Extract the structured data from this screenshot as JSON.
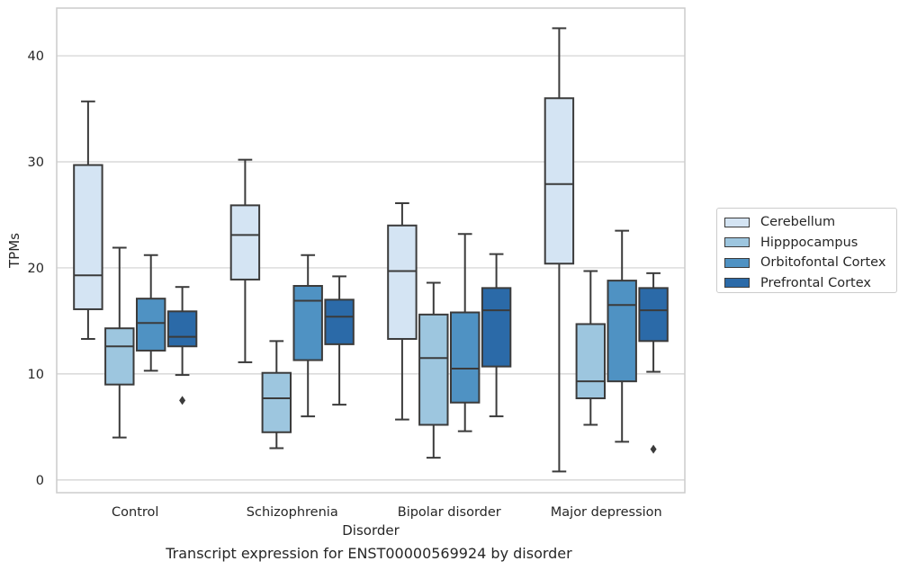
{
  "caption": "Transcript expression for ENST00000569924 by disorder",
  "legend_items": [
    {
      "label": "Cerebellum",
      "color": "#d4e4f3"
    },
    {
      "label": "Hipppocampus",
      "color": "#9dc6df"
    },
    {
      "label": "Orbitofontal Cortex",
      "color": "#4f92c3"
    },
    {
      "label": "Prefrontal Cortex",
      "color": "#2b6aa8"
    }
  ],
  "chart_data": {
    "type": "box",
    "title": "",
    "xlabel": "Disorder",
    "ylabel": "TPMs",
    "ylim": [
      -1.2,
      44.5
    ],
    "yticks": [
      0,
      10,
      20,
      30,
      40
    ],
    "grid": "horizontal",
    "legend_position": "right",
    "categories": [
      "Control",
      "Schizophrenia",
      "Bipolar disorder",
      "Major depression"
    ],
    "series": [
      {
        "name": "Cerebellum",
        "color": "#d4e4f3",
        "boxes": [
          {
            "whisker_low": 13.3,
            "q1": 16.1,
            "median": 19.3,
            "q3": 29.7,
            "whisker_high": 35.7,
            "outliers": []
          },
          {
            "whisker_low": 11.1,
            "q1": 18.9,
            "median": 23.1,
            "q3": 25.9,
            "whisker_high": 30.2,
            "outliers": []
          },
          {
            "whisker_low": 5.7,
            "q1": 13.3,
            "median": 19.7,
            "q3": 24.0,
            "whisker_high": 26.1,
            "outliers": []
          },
          {
            "whisker_low": 0.8,
            "q1": 20.4,
            "median": 27.9,
            "q3": 36.0,
            "whisker_high": 42.6,
            "outliers": []
          }
        ]
      },
      {
        "name": "Hipppocampus",
        "color": "#9dc6df",
        "boxes": [
          {
            "whisker_low": 4.0,
            "q1": 9.0,
            "median": 12.6,
            "q3": 14.3,
            "whisker_high": 21.9,
            "outliers": []
          },
          {
            "whisker_low": 3.0,
            "q1": 4.5,
            "median": 7.7,
            "q3": 10.1,
            "whisker_high": 13.1,
            "outliers": []
          },
          {
            "whisker_low": 2.1,
            "q1": 5.2,
            "median": 11.5,
            "q3": 15.6,
            "whisker_high": 18.6,
            "outliers": []
          },
          {
            "whisker_low": 5.2,
            "q1": 7.7,
            "median": 9.3,
            "q3": 14.7,
            "whisker_high": 19.7,
            "outliers": []
          }
        ]
      },
      {
        "name": "Orbitofontal Cortex",
        "color": "#4f92c3",
        "boxes": [
          {
            "whisker_low": 10.3,
            "q1": 12.2,
            "median": 14.8,
            "q3": 17.1,
            "whisker_high": 21.2,
            "outliers": []
          },
          {
            "whisker_low": 6.0,
            "q1": 11.3,
            "median": 16.9,
            "q3": 18.3,
            "whisker_high": 21.2,
            "outliers": []
          },
          {
            "whisker_low": 4.6,
            "q1": 7.3,
            "median": 10.5,
            "q3": 15.8,
            "whisker_high": 23.2,
            "outliers": []
          },
          {
            "whisker_low": 3.6,
            "q1": 9.3,
            "median": 16.5,
            "q3": 18.8,
            "whisker_high": 23.5,
            "outliers": []
          }
        ]
      },
      {
        "name": "Prefrontal Cortex",
        "color": "#2b6aa8",
        "boxes": [
          {
            "whisker_low": 9.9,
            "q1": 12.6,
            "median": 13.5,
            "q3": 15.9,
            "whisker_high": 18.2,
            "outliers": [
              7.5
            ]
          },
          {
            "whisker_low": 7.1,
            "q1": 12.8,
            "median": 15.4,
            "q3": 17.0,
            "whisker_high": 19.2,
            "outliers": []
          },
          {
            "whisker_low": 6.0,
            "q1": 10.7,
            "median": 16.0,
            "q3": 18.1,
            "whisker_high": 21.3,
            "outliers": []
          },
          {
            "whisker_low": 10.2,
            "q1": 13.1,
            "median": 16.0,
            "q3": 18.1,
            "whisker_high": 19.5,
            "outliers": [
              2.9
            ]
          }
        ]
      }
    ]
  }
}
